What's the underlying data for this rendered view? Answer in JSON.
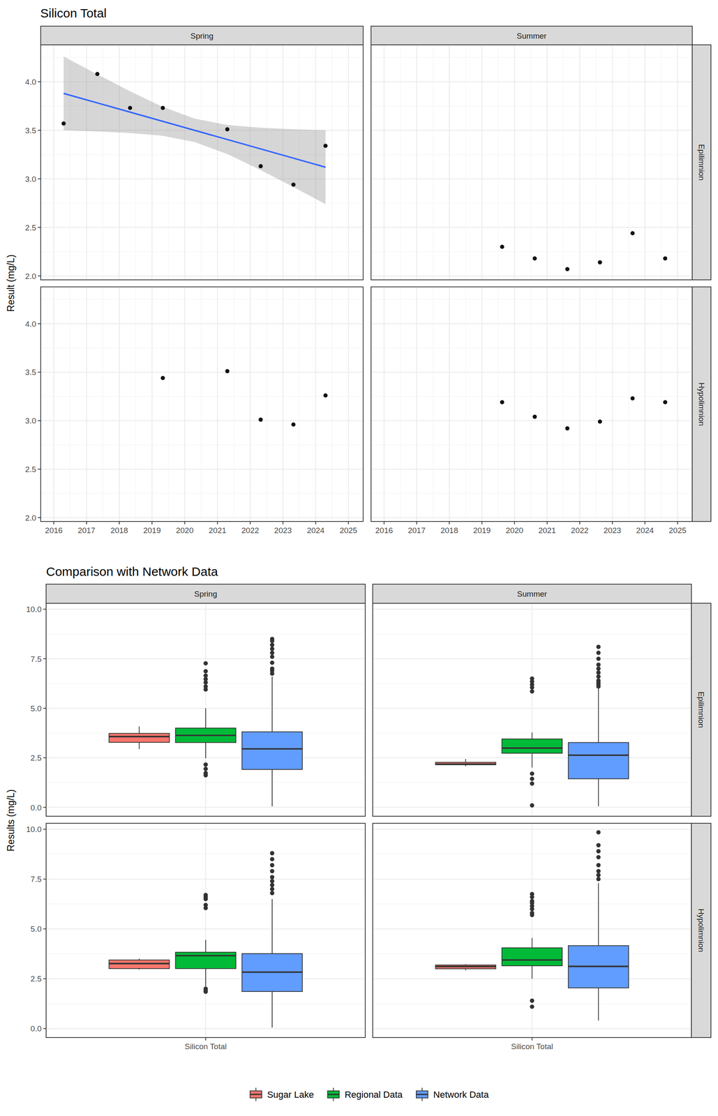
{
  "chart_data": [
    {
      "type": "scatter",
      "title": "Silicon Total",
      "y_label": "Result (mg/L)",
      "columns": [
        "Spring",
        "Summer"
      ],
      "rows": [
        "Epilimnion",
        "Hypolimnion"
      ],
      "xlim": [
        2015.6,
        2025.45
      ],
      "xticks": [
        2016,
        2017,
        2018,
        2019,
        2020,
        2021,
        2022,
        2023,
        2024,
        2025
      ],
      "ylim": [
        1.96,
        4.38
      ],
      "yticks": [
        {
          "value": 2,
          "label": "2.0"
        },
        2.5,
        {
          "value": 3,
          "label": "3.0"
        },
        3.5,
        {
          "value": 4,
          "label": "4.0"
        }
      ],
      "grid": true,
      "panels": [
        {
          "x": [
            2016.3,
            2017.33,
            2018.33,
            2019.33,
            2021.3,
            2022.32,
            2023.32,
            2024.3
          ],
          "values": [
            3.57,
            4.08,
            3.73,
            3.73,
            3.51,
            3.13,
            2.94,
            3.34
          ],
          "trend": {
            "x": [
              2016.3,
              2024.3
            ],
            "values": [
              3.88,
              3.12
            ],
            "color": "#3366FF"
          },
          "ribbon": {
            "x": [
              2016.3,
              2017.3,
              2018.3,
              2019.3,
              2020.3,
              2021.3,
              2022.3,
              2023.3,
              2024.3
            ],
            "lower": [
              3.5,
              3.489,
              3.473,
              3.445,
              3.38,
              3.255,
              3.093,
              2.919,
              2.74
            ],
            "upper": [
              4.26,
              4.081,
              3.907,
              3.745,
              3.62,
              3.555,
              3.527,
              3.511,
              3.5
            ]
          }
        },
        {
          "x": [
            2019.62,
            2020.62,
            2021.62,
            2022.62,
            2023.62,
            2024.62
          ],
          "values": [
            2.3,
            2.18,
            2.07,
            2.14,
            2.44,
            2.18
          ]
        },
        {
          "x": [
            2019.33,
            2021.3,
            2022.32,
            2023.32,
            2024.3
          ],
          "values": [
            3.44,
            3.51,
            3.01,
            2.96,
            3.26
          ]
        },
        {
          "x": [
            2019.62,
            2020.62,
            2021.62,
            2022.62,
            2023.62,
            2024.62
          ],
          "values": [
            3.19,
            3.04,
            2.92,
            2.99,
            3.23,
            3.19
          ]
        }
      ]
    },
    {
      "type": "box",
      "title": "Comparison with Network Data",
      "y_label": "Results (mg/L)",
      "categories": [
        "Silicon Total"
      ],
      "columns": [
        "Spring",
        "Summer"
      ],
      "rows": [
        "Epilimnion",
        "Hypolimnion"
      ],
      "ylim": [
        -0.45,
        10.3
      ],
      "yticks": [
        {
          "value": 0,
          "label": "0.0"
        },
        2.5,
        {
          "value": 5,
          "label": "5.0"
        },
        7.5,
        {
          "value": 10,
          "label": "10.0"
        }
      ],
      "grid": true,
      "legend": "bottom",
      "series": [
        {
          "name": "Sugar Lake",
          "color": "#F8766D",
          "panels": [
            {
              "min": 2.94,
              "q1": 3.28,
              "median": 3.57,
              "q3": 3.73,
              "max": 4.08,
              "outliers": []
            },
            {
              "min": 2.07,
              "q1": 2.15,
              "median": 2.18,
              "q3": 2.27,
              "max": 2.44,
              "outliers": []
            },
            {
              "min": 2.96,
              "q1": 3.01,
              "median": 3.26,
              "q3": 3.44,
              "max": 3.51,
              "outliers": []
            },
            {
              "min": 2.92,
              "q1": 3.0,
              "median": 3.115,
              "q3": 3.19,
              "max": 3.23,
              "outliers": []
            }
          ]
        },
        {
          "name": "Regional Data",
          "color": "#00BA38",
          "panels": [
            {
              "min": 2.48,
              "q1": 3.27,
              "median": 3.63,
              "q3": 4.0,
              "max": 5.0,
              "outliers": [
                5.95,
                6.1,
                6.3,
                6.47,
                6.65,
                6.87,
                7.27,
                2.16,
                1.94,
                1.73,
                1.62
              ]
            },
            {
              "min": 2.01,
              "q1": 2.73,
              "median": 2.99,
              "q3": 3.45,
              "max": 3.78,
              "outliers": [
                5.85,
                6.05,
                6.2,
                6.35,
                6.5,
                1.7,
                1.44,
                1.2,
                0.1
              ]
            },
            {
              "min": 2.11,
              "q1": 3.01,
              "median": 3.66,
              "q3": 3.83,
              "max": 4.45,
              "outliers": [
                6.05,
                6.2,
                6.5,
                6.6,
                6.7,
                2.0,
                1.9,
                1.85
              ]
            },
            {
              "min": 2.5,
              "q1": 3.15,
              "median": 3.44,
              "q3": 4.05,
              "max": 4.55,
              "outliers": [
                5.7,
                5.8,
                6.0,
                6.15,
                6.3,
                6.4,
                6.6,
                6.75,
                1.4,
                1.1
              ]
            }
          ]
        },
        {
          "name": "Network Data",
          "color": "#619CFF",
          "panels": [
            {
              "min": 0.05,
              "q1": 1.91,
              "median": 2.95,
              "q3": 3.81,
              "max": 6.6,
              "outliers": [
                6.75,
                6.9,
                7.0,
                7.3,
                7.6,
                7.8,
                8.0,
                8.2,
                8.4,
                8.5
              ]
            },
            {
              "min": 0.05,
              "q1": 1.44,
              "median": 2.63,
              "q3": 3.27,
              "max": 6.0,
              "outliers": [
                6.1,
                6.2,
                6.3,
                6.4,
                6.6,
                6.8,
                7.0,
                7.2,
                7.5,
                7.8,
                8.1
              ]
            },
            {
              "min": 0.05,
              "q1": 1.86,
              "median": 2.83,
              "q3": 3.76,
              "max": 6.5,
              "outliers": [
                6.8,
                7.0,
                7.2,
                7.4,
                7.6,
                7.9,
                8.2,
                8.5,
                8.8
              ]
            },
            {
              "min": 0.4,
              "q1": 2.04,
              "median": 3.12,
              "q3": 4.16,
              "max": 7.3,
              "outliers": [
                7.5,
                7.7,
                7.9,
                8.2,
                8.6,
                8.9,
                9.2,
                9.85
              ]
            }
          ]
        }
      ]
    }
  ]
}
